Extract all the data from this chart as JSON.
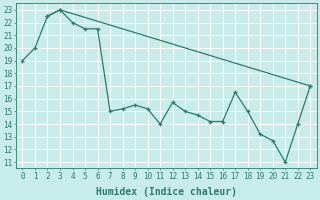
{
  "line1_x": [
    0,
    1,
    2,
    3,
    23
  ],
  "line1_y": [
    19,
    20,
    22.5,
    23,
    17
  ],
  "line2_x": [
    2,
    3,
    4,
    5,
    6,
    7,
    8,
    9,
    10,
    11,
    12,
    13,
    14,
    15,
    16,
    17,
    18,
    19,
    20,
    21,
    22,
    23
  ],
  "line2_y": [
    22.5,
    23,
    22.0,
    21.5,
    21.5,
    15.0,
    15.2,
    15.5,
    15.2,
    14.0,
    15.7,
    15.0,
    14.7,
    14.2,
    14.2,
    16.5,
    15.0,
    13.2,
    12.7,
    11.0,
    14.0,
    17.0
  ],
  "line_color": "#2d7a6e",
  "bg_color": "#c8ecea",
  "grid_major_color": "#ffffff",
  "grid_minor_color": "#daf0ef",
  "xlabel": "Humidex (Indice chaleur)",
  "xlim": [
    -0.5,
    23.5
  ],
  "ylim": [
    10.5,
    23.5
  ],
  "yticks": [
    11,
    12,
    13,
    14,
    15,
    16,
    17,
    18,
    19,
    20,
    21,
    22,
    23
  ],
  "xticks": [
    0,
    1,
    2,
    3,
    4,
    5,
    6,
    7,
    8,
    9,
    10,
    11,
    12,
    13,
    14,
    15,
    16,
    17,
    18,
    19,
    20,
    21,
    22,
    23
  ],
  "tick_fontsize": 5.5,
  "xlabel_fontsize": 7
}
